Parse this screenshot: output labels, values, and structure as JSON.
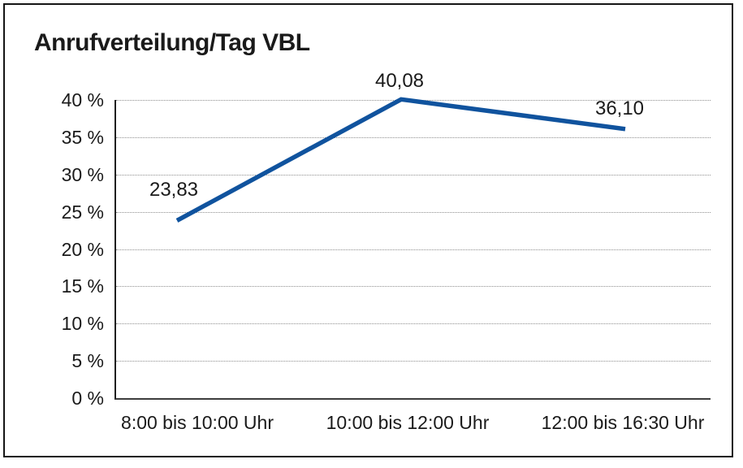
{
  "chart_data": {
    "type": "line",
    "title": "Anrufverteilung/Tag VBL",
    "categories": [
      "8:00 bis 10:00 Uhr",
      "10:00 bis 12:00 Uhr",
      "12:00 bis 16:30 Uhr"
    ],
    "values": [
      23.83,
      40.08,
      36.1
    ],
    "point_labels": [
      "23,83",
      "40,08",
      "36,10"
    ],
    "yticks": [
      {
        "value": 0,
        "label": "0 %"
      },
      {
        "value": 5,
        "label": "5 %"
      },
      {
        "value": 10,
        "label": "10 %"
      },
      {
        "value": 15,
        "label": "15 %"
      },
      {
        "value": 20,
        "label": "20 %"
      },
      {
        "value": 25,
        "label": "25 %"
      },
      {
        "value": 30,
        "label": "30 %"
      },
      {
        "value": 35,
        "label": "35 %"
      },
      {
        "value": 40,
        "label": "40 %"
      }
    ],
    "ylim": [
      0,
      40
    ],
    "xlabel": "",
    "ylabel": "",
    "legend": "none",
    "grid": "horizontal-dotted",
    "line_color": "#10539e",
    "text_color": "#1a1a1a",
    "background_color": "#ffffff"
  }
}
